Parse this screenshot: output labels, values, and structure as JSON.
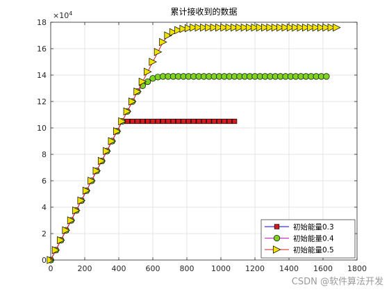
{
  "chart_data": {
    "type": "line",
    "title": "累计接收到的数据",
    "xlabel": "",
    "ylabel": "",
    "xlim": [
      0,
      1800
    ],
    "ylim": [
      0,
      18
    ],
    "y_multiplier_label": "×10",
    "y_multiplier_exponent": "4",
    "x_ticks": [
      0,
      200,
      400,
      600,
      800,
      1000,
      1200,
      1400,
      1600,
      1800
    ],
    "y_ticks": [
      0,
      2,
      4,
      6,
      8,
      10,
      12,
      14,
      16,
      18
    ],
    "grid": true,
    "legend_position": "bottom-right",
    "series": [
      {
        "name": "初始能量0.3",
        "color": "#0000ff",
        "marker": "square",
        "marker_fill": "#d7191c",
        "x": [
          0,
          30,
          60,
          90,
          120,
          150,
          180,
          210,
          240,
          270,
          300,
          330,
          360,
          390,
          420,
          450,
          480,
          510,
          540,
          570,
          600,
          630,
          660,
          690,
          720,
          750,
          780,
          810,
          840,
          870,
          900,
          930,
          960,
          990,
          1020,
          1050,
          1080
        ],
        "y": [
          0,
          0.75,
          1.5,
          2.25,
          3.0,
          3.75,
          4.5,
          5.25,
          6.0,
          6.75,
          7.5,
          8.25,
          9.0,
          9.75,
          10.5,
          10.5,
          10.5,
          10.5,
          10.5,
          10.5,
          10.5,
          10.5,
          10.5,
          10.5,
          10.5,
          10.5,
          10.5,
          10.5,
          10.5,
          10.5,
          10.5,
          10.5,
          10.5,
          10.5,
          10.5,
          10.5,
          10.5
        ]
      },
      {
        "name": "初始能量0.4",
        "color": "#ff00ff",
        "marker": "circle",
        "marker_fill": "#7ed321",
        "x": [
          0,
          30,
          60,
          90,
          120,
          150,
          180,
          210,
          240,
          270,
          300,
          330,
          360,
          390,
          420,
          450,
          480,
          510,
          540,
          570,
          600,
          630,
          660,
          690,
          720,
          750,
          780,
          810,
          840,
          870,
          900,
          930,
          960,
          990,
          1020,
          1050,
          1080,
          1110,
          1140,
          1170,
          1200,
          1230,
          1260,
          1290,
          1320,
          1350,
          1380,
          1410,
          1440,
          1470,
          1500,
          1530,
          1560,
          1590,
          1620
        ],
        "y": [
          0,
          0.75,
          1.5,
          2.25,
          3.0,
          3.75,
          4.5,
          5.25,
          6.0,
          6.75,
          7.5,
          8.25,
          9.0,
          9.75,
          10.5,
          11.25,
          12.0,
          12.75,
          13.2,
          13.5,
          13.75,
          13.85,
          13.9,
          13.9,
          13.9,
          13.9,
          13.9,
          13.9,
          13.9,
          13.9,
          13.9,
          13.9,
          13.9,
          13.9,
          13.9,
          13.9,
          13.9,
          13.9,
          13.9,
          13.9,
          13.9,
          13.9,
          13.9,
          13.9,
          13.9,
          13.9,
          13.9,
          13.9,
          13.9,
          13.9,
          13.9,
          13.9,
          13.9,
          13.9,
          13.9
        ]
      },
      {
        "name": "初始能量0.5",
        "color": "#d7191c",
        "marker": "triangle-right",
        "marker_fill": "#f2e200",
        "x": [
          0,
          30,
          60,
          90,
          120,
          150,
          180,
          210,
          240,
          270,
          300,
          330,
          360,
          390,
          420,
          450,
          480,
          510,
          540,
          570,
          600,
          630,
          660,
          690,
          720,
          750,
          780,
          810,
          840,
          870,
          900,
          930,
          960,
          990,
          1020,
          1050,
          1080,
          1110,
          1140,
          1170,
          1200,
          1230,
          1260,
          1290,
          1320,
          1350,
          1380,
          1410,
          1440,
          1470,
          1500,
          1530,
          1560,
          1590,
          1620,
          1650,
          1680
        ],
        "y": [
          0,
          0.75,
          1.5,
          2.25,
          3.0,
          3.75,
          4.5,
          5.25,
          6.0,
          6.75,
          7.5,
          8.25,
          9.0,
          9.75,
          10.5,
          11.25,
          12.0,
          12.75,
          13.5,
          14.25,
          15.0,
          15.75,
          16.5,
          17.0,
          17.25,
          17.4,
          17.5,
          17.55,
          17.6,
          17.6,
          17.6,
          17.6,
          17.6,
          17.6,
          17.6,
          17.6,
          17.6,
          17.6,
          17.6,
          17.6,
          17.6,
          17.6,
          17.6,
          17.6,
          17.6,
          17.6,
          17.6,
          17.6,
          17.6,
          17.6,
          17.6,
          17.6,
          17.6,
          17.6,
          17.6,
          17.6,
          17.6
        ]
      }
    ]
  },
  "watermark": "CSDN @软件算法开发"
}
